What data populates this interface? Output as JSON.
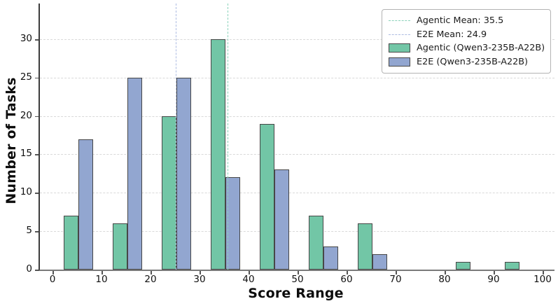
{
  "figure": {
    "xlabel": "Score Range",
    "ylabel": "Number of Tasks"
  },
  "chart_data": {
    "type": "bar",
    "title": "",
    "xlabel": "Score Range",
    "ylabel": "Number of Tasks",
    "bin_width": 10,
    "categories": [
      "0-10",
      "10-20",
      "20-30",
      "30-40",
      "40-50",
      "50-60",
      "60-70",
      "70-80",
      "80-90",
      "90-100"
    ],
    "series": [
      {
        "name": "Agentic (Qwen3-235B-A22B)",
        "color": "#72c6a6",
        "values": [
          7,
          6,
          20,
          30,
          19,
          7,
          6,
          0,
          1,
          1
        ],
        "bar_offset_in_bin": 2
      },
      {
        "name": "E2E (Qwen3-235B-A22B)",
        "color": "#92a6d0",
        "values": [
          17,
          25,
          25,
          12,
          13,
          3,
          2,
          0,
          0,
          0
        ],
        "bar_offset_in_bin": 5
      }
    ],
    "bar_width_units": 3,
    "bar_edge_color": "#474747",
    "mean_lines": [
      {
        "label": "Agentic Mean: 35.5",
        "value": 35.5,
        "color": "#8ad2ba"
      },
      {
        "label": "E2E Mean: 24.9",
        "value": 24.9,
        "color": "#adbce2"
      }
    ],
    "x_ticks": [
      0,
      10,
      20,
      30,
      40,
      50,
      60,
      70,
      80,
      90,
      100
    ],
    "y_ticks": [
      0,
      5,
      10,
      15,
      20,
      25,
      30
    ],
    "xlim": [
      -2.857,
      102.143
    ],
    "ylim": [
      0,
      34.65
    ],
    "grid": "horizontal-dashed",
    "grid_color": "#d9d9d9",
    "legend_position": "upper right"
  }
}
